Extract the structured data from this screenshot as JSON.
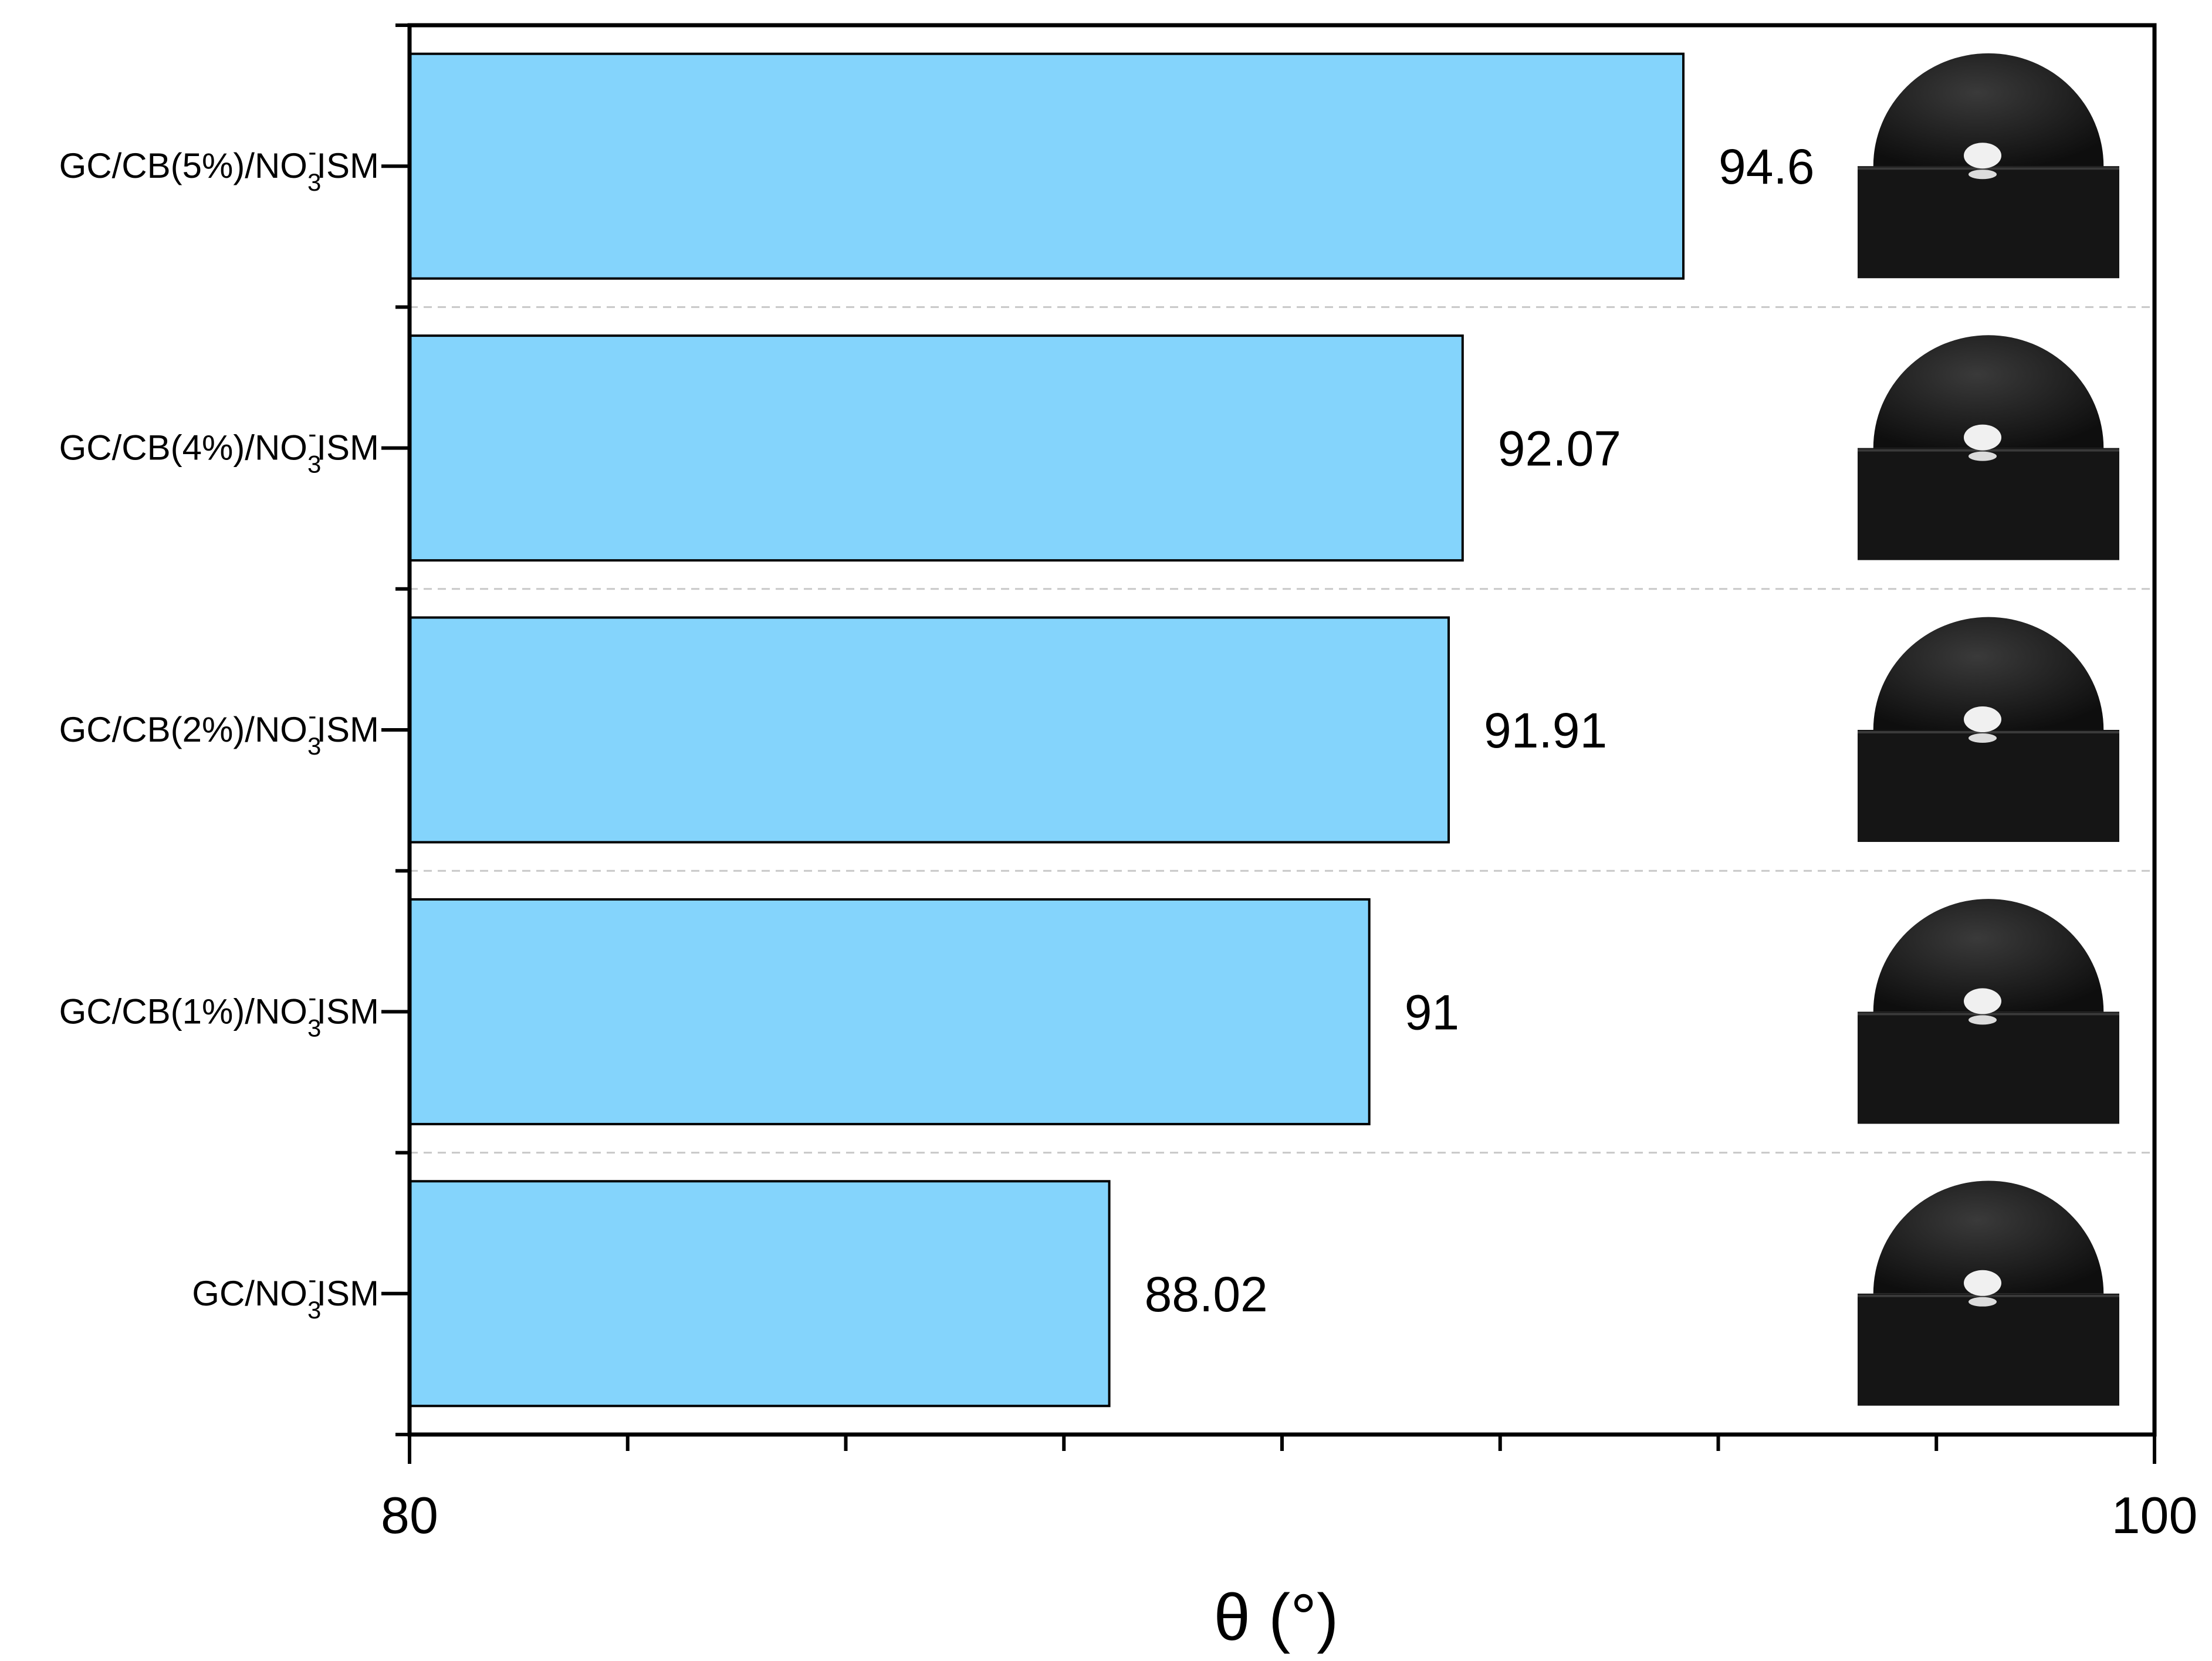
{
  "chart_data": {
    "type": "bar",
    "orientation": "horizontal",
    "categories": [
      {
        "main": "GC/CB(5%)/NO",
        "sub": "3",
        "sup": "-",
        "tail": "ISM"
      },
      {
        "main": "GC/CB(4%)/NO",
        "sub": "3",
        "sup": "-",
        "tail": "ISM"
      },
      {
        "main": "GC/CB(2%)/NO",
        "sub": "3",
        "sup": "-",
        "tail": "ISM"
      },
      {
        "main": "GC/CB(1%)/NO",
        "sub": "3",
        "sup": "-",
        "tail": "ISM"
      },
      {
        "main": "GC/NO",
        "sub": "3",
        "sup": "-",
        "tail": "ISM"
      }
    ],
    "values": [
      94.6,
      92.07,
      91.91,
      91,
      88.02
    ],
    "value_labels": [
      "94.6",
      "92.07",
      "91.91",
      "91",
      "88.02"
    ],
    "xlabel": "θ (°)",
    "xlim": [
      80,
      100
    ],
    "xticks": [
      80,
      100
    ],
    "bar_color": "#84d4fc",
    "grid": "horizontal dashed separators",
    "insets": [
      "droplet-image",
      "droplet-image",
      "droplet-image",
      "droplet-image",
      "droplet-image"
    ]
  }
}
